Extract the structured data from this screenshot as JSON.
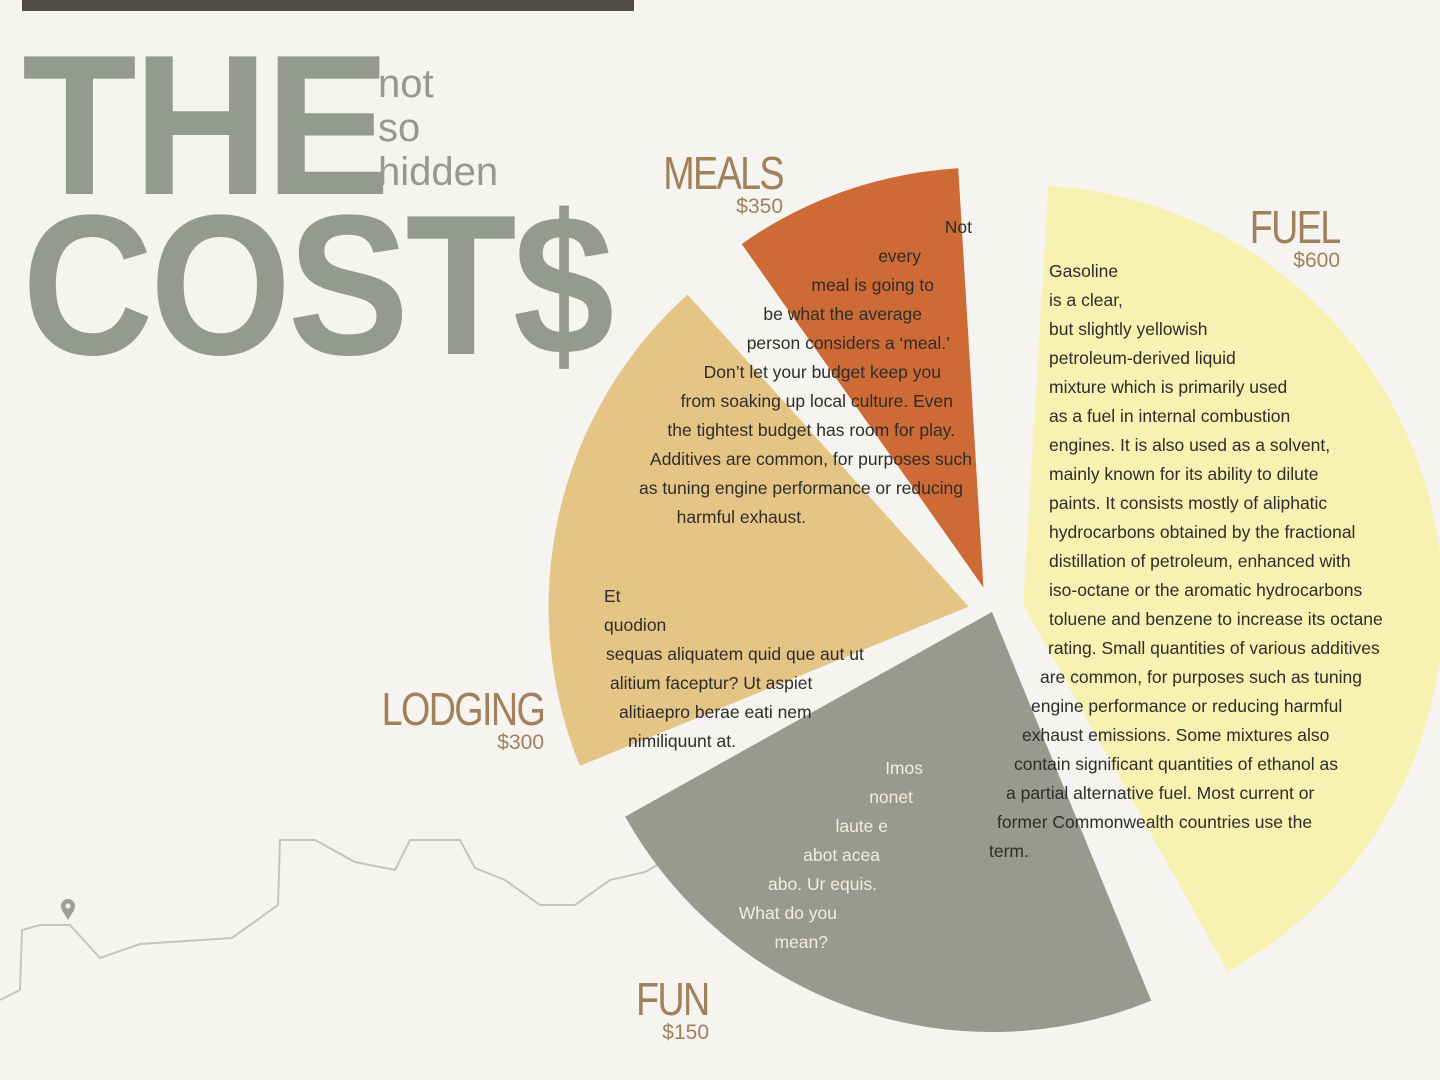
{
  "title": {
    "line1": "THE",
    "line2": "COST$",
    "sub": [
      "not",
      "so",
      "hidden"
    ]
  },
  "colors": {
    "meals": "#979a8c",
    "fuel": "#f8f1b2",
    "lodging": "#e4c586",
    "fun": "#cd6a35",
    "label": "#a2815a",
    "title": "#949a8d"
  },
  "chart_data": {
    "type": "pie",
    "categories": [
      "FUEL",
      "MEALS",
      "LODGING",
      "FUN"
    ],
    "values": [
      600,
      350,
      300,
      150
    ],
    "value_labels": [
      "$600",
      "$350",
      "$300",
      "$150"
    ]
  },
  "segments": {
    "fuel": {
      "name": "FUEL",
      "value": "$600",
      "text": [
        "Gasoline",
        "is a clear,",
        "but slightly yellowish",
        "petroleum-derived liquid",
        "mixture which is primarily used",
        "as a fuel in internal combustion",
        "engines. It is also used as a solvent,",
        "mainly known for its ability to dilute",
        "paints. It consists mostly of aliphatic",
        "hydrocarbons obtained by the fractional",
        "distillation of petroleum, enhanced with",
        "iso-octane or the aromatic hydrocarbons",
        "toluene and benzene to increase its octane",
        "rating. Small quantities of various additives",
        "are common, for purposes such as tuning",
        "engine performance or reducing harmful",
        "exhaust emissions. Some mixtures also",
        "contain significant quantities of ethanol as",
        "a partial alternative fuel. Most current or",
        "former Commonwealth countries use the",
        "term."
      ]
    },
    "meals": {
      "name": "MEALS",
      "value": "$350",
      "text": [
        "Not",
        "every",
        "meal is going to",
        "be what the average",
        "person considers a ‘meal.’",
        "Don’t let your budget keep you",
        "from soaking up local culture. Even",
        "the tightest budget has room for play.",
        "Additives are common, for purposes such",
        "as tuning engine performance or reducing",
        "harmful exhaust."
      ]
    },
    "lodging": {
      "name": "LODGING",
      "value": "$300",
      "text": [
        "Et",
        "quodion",
        "sequas aliquatem quid que aut ut",
        "alitium faceptur? Ut aspiet",
        "alitiaepro berae eati nem",
        "nimiliquunt at."
      ]
    },
    "fun": {
      "name": "FUN",
      "value": "$150",
      "text": [
        "Imos",
        "nonet",
        "laute e",
        "abot acea",
        "abo. Ur equis.",
        "What do you",
        "mean?"
      ]
    }
  }
}
